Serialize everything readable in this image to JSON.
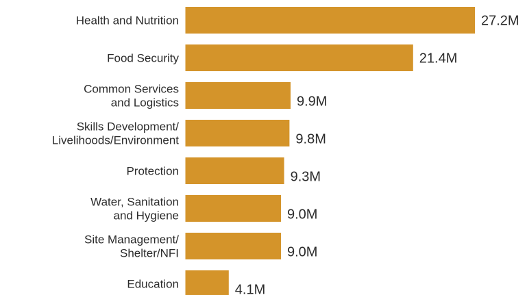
{
  "chart_data": {
    "type": "bar",
    "orientation": "horizontal",
    "title": "",
    "xlabel": "",
    "ylabel": "",
    "categories": [
      "Health and Nutrition",
      "Food Security",
      "Common Services\nand Logistics",
      "Skills Development/\nLivelihoods/Environment",
      "Protection",
      "Water, Sanitation\nand Hygiene",
      "Site Management/\nShelter/NFI",
      "Education"
    ],
    "values": [
      27.2,
      21.4,
      9.9,
      9.8,
      9.3,
      9.0,
      9.0,
      4.1
    ],
    "value_labels": [
      "27.2M",
      "21.4M",
      "9.9M",
      "9.8M",
      "9.3M",
      "9.0M",
      "9.0M",
      "4.1M"
    ],
    "unit": "M",
    "xlim": [
      0,
      27.2
    ],
    "grid": false,
    "legend": "none",
    "bar_color": "#D4942A"
  }
}
